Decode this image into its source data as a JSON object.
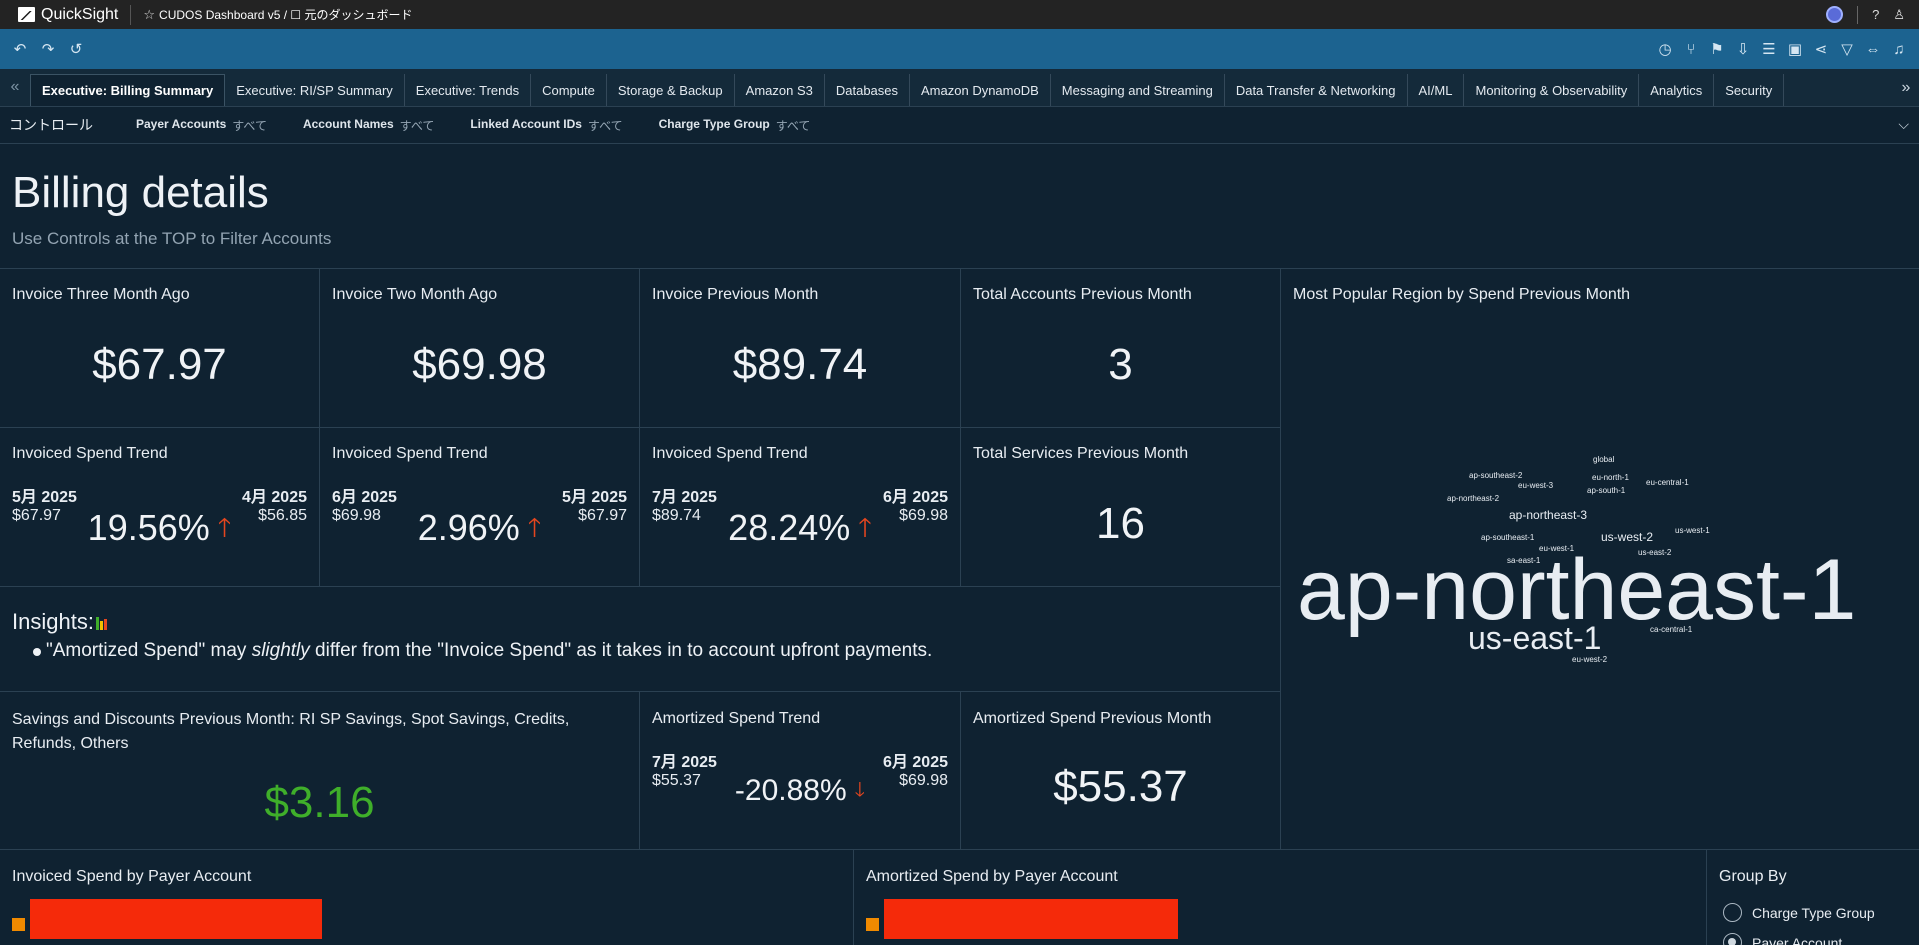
{
  "app": {
    "name": "QuickSight",
    "dashboard_title": "CUDOS Dashboard v5 / ☐ 元のダッシュボード"
  },
  "tabs": [
    {
      "label": "Executive: Billing Summary",
      "active": true
    },
    {
      "label": "Executive: RI/SP Summary"
    },
    {
      "label": "Executive: Trends"
    },
    {
      "label": "Compute"
    },
    {
      "label": "Storage & Backup"
    },
    {
      "label": "Amazon S3"
    },
    {
      "label": "Databases"
    },
    {
      "label": "Amazon DynamoDB"
    },
    {
      "label": "Messaging and Streaming"
    },
    {
      "label": "Data Transfer & Networking"
    },
    {
      "label": "AI/ML"
    },
    {
      "label": "Monitoring & Observability"
    },
    {
      "label": "Analytics"
    },
    {
      "label": "Security"
    }
  ],
  "controls": {
    "title": "コントロール",
    "items": [
      {
        "label": "Payer Accounts",
        "value": "すべて"
      },
      {
        "label": "Account Names",
        "value": "すべて"
      },
      {
        "label": "Linked Account IDs",
        "value": "すべて"
      },
      {
        "label": "Charge Type Group",
        "value": "すべて"
      }
    ]
  },
  "header": {
    "title": "Billing details",
    "subtitle": "Use Controls at the TOP to Filter Accounts"
  },
  "kpis": {
    "invoice_3m": {
      "title": "Invoice Three Month Ago",
      "value": "$67.97"
    },
    "invoice_2m": {
      "title": "Invoice Two Month Ago",
      "value": "$69.98"
    },
    "invoice_prev": {
      "title": "Invoice Previous Month",
      "value": "$89.74"
    },
    "accounts_prev": {
      "title": "Total Accounts Previous Month",
      "value": "3"
    },
    "services_prev": {
      "title": "Total Services Previous Month",
      "value": "16"
    },
    "savings": {
      "title": "Savings and Discounts Previous Month: RI SP Savings, Spot Savings, Credits, Refunds, Others",
      "value": "$3.16"
    },
    "amortized_prev": {
      "title": "Amortized Spend Previous Month",
      "value": "$55.37"
    }
  },
  "trends": [
    {
      "title": "Invoiced Spend Trend",
      "period_a": "5月 2025",
      "value_a": "$67.97",
      "period_b": "4月 2025",
      "value_b": "$56.85",
      "pct": "19.56%",
      "direction": "up"
    },
    {
      "title": "Invoiced Spend Trend",
      "period_a": "6月 2025",
      "value_a": "$69.98",
      "period_b": "5月 2025",
      "value_b": "$67.97",
      "pct": "2.96%",
      "direction": "up"
    },
    {
      "title": "Invoiced Spend Trend",
      "period_a": "7月 2025",
      "value_a": "$89.74",
      "period_b": "6月 2025",
      "value_b": "$69.98",
      "pct": "28.24%",
      "direction": "up"
    }
  ],
  "amortized_trend": {
    "title": "Amortized Spend Trend",
    "period_a": "7月 2025",
    "value_a": "$55.37",
    "period_b": "6月 2025",
    "value_b": "$69.98",
    "pct": "-20.88%",
    "direction": "down"
  },
  "insights": {
    "header": "Insights:",
    "text_before": "\"Amortized Spend\" may ",
    "text_em": "slightly",
    "text_after": " differ from the \"Invoice Spend\" as it takes in to account upfront payments."
  },
  "word_cloud": {
    "title": "Most Popular Region by Spend Previous Month",
    "words": [
      "ap-northeast-1",
      "us-east-1",
      "ap-northeast-3",
      "us-west-2",
      "global",
      "ap-southeast-2",
      "eu-north-1",
      "eu-central-1",
      "eu-west-3",
      "ap-south-1",
      "ap-northeast-2",
      "ap-southeast-1",
      "eu-west-1",
      "us-east-2",
      "us-west-1",
      "sa-east-1",
      "ca-central-1",
      "eu-west-2"
    ]
  },
  "bottom": {
    "invoiced_by_payer": {
      "title": "Invoiced Spend by Payer Account"
    },
    "amortized_by_payer": {
      "title": "Amortized Spend by Payer Account"
    },
    "group_by": {
      "title": "Group By",
      "options": [
        {
          "label": "Charge Type Group",
          "selected": false
        },
        {
          "label": "Payer Account",
          "selected": true
        }
      ]
    }
  },
  "colors": {
    "up_arrow": "#e5461f",
    "savings": "#3faf2a",
    "bar": "#f52a0a",
    "legend": "#f08a00"
  }
}
